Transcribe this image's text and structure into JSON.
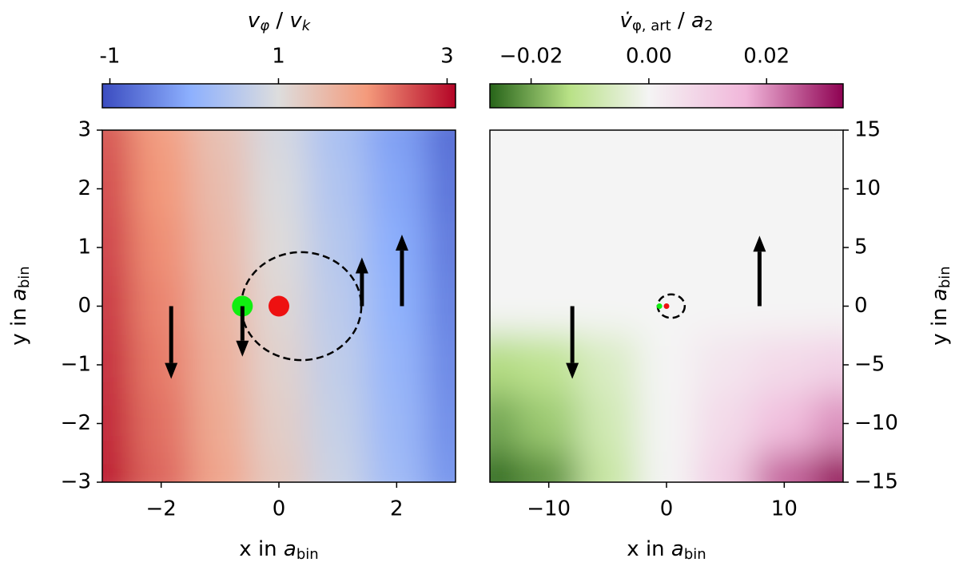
{
  "chart_data": [
    {
      "type": "heatmap",
      "colorbar_label": [
        "v",
        "φ",
        " / ",
        "v",
        "k"
      ],
      "x_label": [
        "x in ",
        "a",
        "bin"
      ],
      "y_label": [
        "y in ",
        "a",
        "bin"
      ],
      "xlim": [
        -3,
        3
      ],
      "ylim": [
        -3,
        3
      ],
      "xticks": [
        {
          "value": -2,
          "label": "−2"
        },
        0,
        2
      ],
      "yticks": [
        {
          "value": -3,
          "label": "−3"
        },
        {
          "value": -2,
          "label": "−2"
        },
        {
          "value": -1,
          "label": "−1"
        },
        0,
        1,
        2,
        3
      ],
      "y_axis_side": "left",
      "clim": [
        -1.09,
        3.1
      ],
      "norm_center": 1,
      "colorbar_ticks": [
        -1,
        1,
        3
      ],
      "colormap": [
        "#3b4cc0",
        "#8db0fe",
        "#dddddd",
        "#f49a7b",
        "#b40426"
      ],
      "field": {
        "x": [
          -3,
          -2,
          -1,
          0,
          1,
          2,
          3
        ],
        "y": [
          3,
          2,
          1,
          0,
          -1,
          -2,
          -3
        ],
        "z": [
          [
            2.54,
            1.99,
            1.44,
            0.89,
            0.34,
            -0.21,
            -0.76
          ],
          [
            2.61,
            2.06,
            1.51,
            0.96,
            0.41,
            -0.14,
            -0.69
          ],
          [
            2.68,
            2.13,
            1.58,
            1.03,
            0.48,
            -0.07,
            -0.62
          ],
          [
            2.75,
            2.2,
            1.65,
            1.1,
            0.55,
            0,
            -0.55
          ],
          [
            2.82,
            2.27,
            1.72,
            1.17,
            0.62,
            0.07,
            -0.48
          ],
          [
            2.89,
            2.34,
            1.79,
            1.24,
            0.69,
            0.14,
            -0.41
          ],
          [
            2.96,
            2.41,
            1.86,
            1.31,
            0.76,
            0.21,
            -0.34
          ]
        ]
      },
      "orbit": {
        "cx": 0.38,
        "cy": 0,
        "rx": 1.02,
        "ry": 0.92
      },
      "points": [
        {
          "x": -0.62,
          "y": 0,
          "color": "#11ee11"
        },
        {
          "x": 0,
          "y": 0,
          "color": "#ee1111"
        }
      ],
      "arrows": [
        {
          "x": -1.83,
          "y": 0,
          "dy": -1.24
        },
        {
          "x": -0.62,
          "y": 0,
          "dy": -0.86
        },
        {
          "x": 1.41,
          "y": 0,
          "dy": 0.83
        },
        {
          "x": 2.09,
          "y": 0,
          "dy": 1.22
        }
      ]
    },
    {
      "type": "heatmap",
      "colorbar_label": [
        "v̇",
        "φ, art",
        " / ",
        "a",
        "2"
      ],
      "x_label": [
        "x in ",
        "a",
        "bin"
      ],
      "y_label": [
        "y in ",
        "a",
        "bin"
      ],
      "xlim": [
        -15,
        15
      ],
      "ylim": [
        -15,
        15
      ],
      "xticks": [
        {
          "value": -10,
          "label": "−10"
        },
        0,
        10
      ],
      "yticks": [
        {
          "value": -15,
          "label": "−15"
        },
        {
          "value": -10,
          "label": "−10"
        },
        {
          "value": -5,
          "label": "−5"
        },
        0,
        5,
        10,
        15
      ],
      "y_axis_side": "right",
      "clim": [
        -0.027,
        0.033
      ],
      "norm_center": 0,
      "colorbar_ticks": [
        {
          "value": -0.02,
          "label": "−0.02"
        },
        {
          "value": 0,
          "label": "0.00"
        },
        {
          "value": 0.02,
          "label": "0.02"
        }
      ],
      "colormap": [
        "#276419",
        "#b8e186",
        "#f4f4f4",
        "#f1b6da",
        "#8e0152"
      ],
      "field": {
        "x": [
          -15,
          -10,
          -5,
          0,
          5,
          10,
          15
        ],
        "y": [
          15,
          10,
          5,
          0,
          -5,
          -10,
          -15
        ],
        "z": [
          [
            0,
            0,
            0,
            0,
            0,
            0,
            0
          ],
          [
            0,
            0,
            0,
            0,
            0,
            0,
            0
          ],
          [
            0,
            0,
            0,
            0,
            0,
            0,
            0
          ],
          [
            0,
            0,
            0,
            0,
            0,
            0,
            0
          ],
          [
            -0.014,
            -0.012,
            -0.006,
            0,
            0.004,
            0.007,
            0.009
          ],
          [
            -0.02,
            -0.016,
            -0.008,
            0,
            0.007,
            0.014,
            0.02
          ],
          [
            -0.026,
            -0.022,
            -0.01,
            0,
            0.01,
            0.024,
            0.032
          ]
        ]
      },
      "orbit": {
        "cx": 0.4,
        "cy": 0,
        "rx": 1.15,
        "ry": 1.0
      },
      "points": [
        {
          "x": -0.6,
          "y": 0,
          "color": "#11ee11"
        },
        {
          "x": 0,
          "y": 0,
          "color": "#ee1111"
        }
      ],
      "arrows": [
        {
          "x": -8,
          "y": 0,
          "dy": -6.2
        },
        {
          "x": 7.9,
          "y": 0,
          "dy": 6.0
        }
      ]
    }
  ]
}
